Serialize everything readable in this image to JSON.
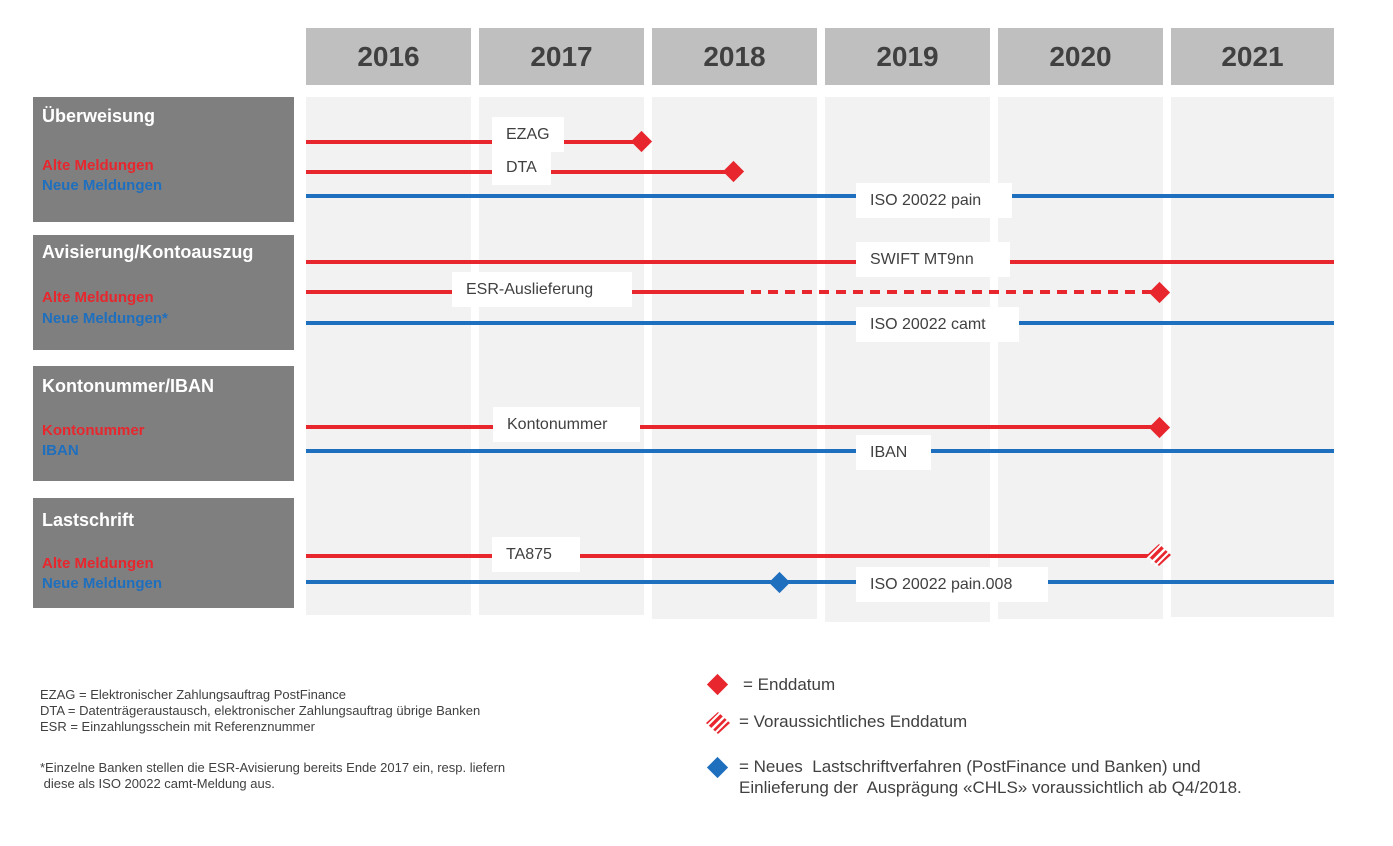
{
  "years": [
    "2016",
    "2017",
    "2018",
    "2019",
    "2020",
    "2021"
  ],
  "sections": [
    {
      "title": "Überweisung",
      "old_label": "Alte Meldungen",
      "new_label": "Neue Meldungen",
      "tracks": [
        {
          "label": "EZAG",
          "color": "red",
          "style": "solid",
          "end_marker": "Enddatum"
        },
        {
          "label": "DTA",
          "color": "red",
          "style": "solid",
          "end_marker": "Enddatum"
        },
        {
          "label": "ISO 20022 pain",
          "color": "blue",
          "style": "solid"
        }
      ]
    },
    {
      "title": "Avisierung/Kontoauszug",
      "old_label": "Alte Meldungen",
      "new_label": "Neue Meldungen*",
      "tracks": [
        {
          "label": "SWIFT MT9nn",
          "color": "red",
          "style": "solid"
        },
        {
          "label": "ESR-Auslieferung",
          "color": "red",
          "style": "solid-then-dashed",
          "end_marker": "Enddatum"
        },
        {
          "label": "ISO 20022 camt",
          "color": "blue",
          "style": "solid"
        }
      ]
    },
    {
      "title": "Kontonummer/IBAN",
      "old_label": "Kontonummer",
      "new_label": "IBAN",
      "tracks": [
        {
          "label": "Kontonummer",
          "color": "red",
          "style": "solid",
          "end_marker": "Enddatum"
        },
        {
          "label": "IBAN",
          "color": "blue",
          "style": "solid"
        }
      ]
    },
    {
      "title": "Lastschrift",
      "old_label": "Alte Meldungen",
      "new_label": "Neue Meldungen",
      "tracks": [
        {
          "label": "TA875",
          "color": "red",
          "style": "solid",
          "end_marker": "Voraussichtliches Enddatum"
        },
        {
          "label": "ISO 20022 pain.008",
          "color": "blue",
          "style": "solid",
          "start_marker": "Neues Lastschriftverfahren"
        }
      ]
    }
  ],
  "footnotes": {
    "abbreviations": [
      "EZAG = Elektronischer Zahlungsauftrag PostFinance",
      "DTA = Datenträgeraustausch, elektronischer Zahlungsauftrag übrige Banken",
      "ESR = Einzahlungsschein mit Referenznummer"
    ],
    "note": [
      "*Einzelne Banken stellen die ESR-Avisierung bereits Ende 2017 ein, resp. liefern",
      " diese als ISO 20022 camt-Meldung aus."
    ]
  },
  "key": {
    "end": "= Enddatum",
    "expected_end": "= Voraussichtliches Enddatum",
    "new_debit": [
      "= Neues  Lastschriftverfahren (PostFinance und Banken) und",
      "Einlieferung der  Ausprägung «CHLS» voraussichtlich ab Q4/2018."
    ]
  },
  "colors": {
    "old": "#e8262d",
    "new": "#1f6fbf",
    "header_bg": "#bfbfbf",
    "section_bg": "#7f7f7f",
    "column_bg": "#f2f2f2"
  }
}
